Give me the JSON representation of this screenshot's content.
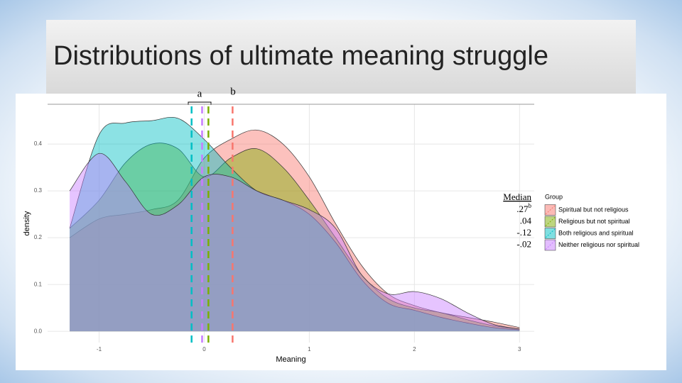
{
  "chart_data": {
    "type": "density",
    "title": "Distributions of ultimate meaning struggle",
    "x_label": "Meaning",
    "y_label": "density",
    "legend_title": "Group",
    "median_header": "Median",
    "annotations": [
      "a",
      "b"
    ],
    "x": [
      -1.28,
      -1.0,
      -0.75,
      -0.5,
      -0.25,
      0,
      0.25,
      0.5,
      0.75,
      1.0,
      1.25,
      1.5,
      1.75,
      2.0,
      2.25,
      2.5,
      2.75,
      3.0
    ],
    "series": [
      {
        "name": "Spiritual but not religious",
        "color": "#F8766D",
        "median": 0.27,
        "median_label": ".27",
        "median_sup": "b",
        "values": [
          0.2,
          0.24,
          0.25,
          0.26,
          0.28,
          0.37,
          0.41,
          0.43,
          0.4,
          0.33,
          0.23,
          0.14,
          0.08,
          0.055,
          0.04,
          0.03,
          0.02,
          0.008
        ]
      },
      {
        "name": "Religious but not spiritual",
        "color": "#7CAE00",
        "median": 0.04,
        "median_label": ".04",
        "values": [
          0.22,
          0.28,
          0.36,
          0.4,
          0.39,
          0.33,
          0.37,
          0.39,
          0.35,
          0.28,
          0.2,
          0.12,
          0.07,
          0.05,
          0.04,
          0.025,
          0.012,
          0.005
        ]
      },
      {
        "name": "Both religious and spiritual",
        "color": "#00BFC4",
        "median": -0.12,
        "median_label": "-.12",
        "values": [
          0.22,
          0.42,
          0.445,
          0.45,
          0.455,
          0.41,
          0.35,
          0.3,
          0.28,
          0.25,
          0.19,
          0.11,
          0.06,
          0.045,
          0.03,
          0.018,
          0.008,
          0.003
        ]
      },
      {
        "name": "Neither religious nor spiritual",
        "color": "#C77CFF",
        "median": -0.02,
        "median_label": "-.02",
        "values": [
          0.3,
          0.38,
          0.32,
          0.25,
          0.27,
          0.33,
          0.33,
          0.3,
          0.28,
          0.26,
          0.22,
          0.12,
          0.08,
          0.085,
          0.07,
          0.04,
          0.015,
          0.005
        ]
      }
    ],
    "xlim": [
      -1.49,
      3.14
    ],
    "ylim": [
      -0.024,
      0.485
    ],
    "xticks": [
      -1,
      0,
      1,
      2,
      3
    ],
    "yticks": [
      {
        "value": 0,
        "label": "0.0"
      },
      {
        "value": 0.1,
        "label": "0.1"
      },
      {
        "value": 0.2,
        "label": "0.2"
      },
      {
        "value": 0.3,
        "label": "0.3"
      },
      {
        "value": 0.4,
        "label": "0.4"
      }
    ],
    "grid": true
  }
}
